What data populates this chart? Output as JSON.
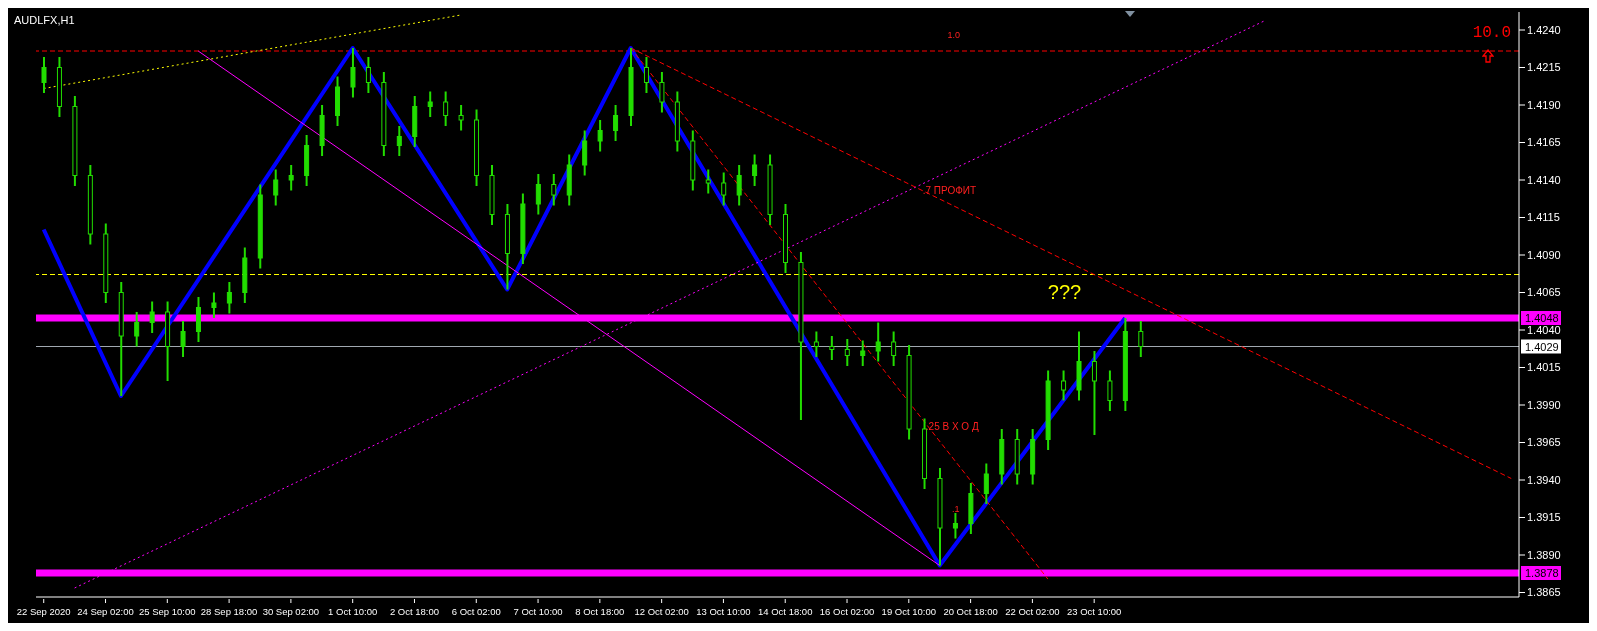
{
  "chart_data": {
    "type": "candlestick",
    "title": "AUDLFX,H1",
    "color": "#22dd00",
    "categories": [
      "22 Sep 2020",
      null,
      null,
      null,
      "24 Sep 02:00",
      null,
      null,
      null,
      "25 Sep 10:00",
      null,
      null,
      null,
      "28 Sep 18:00",
      null,
      null,
      null,
      "30 Sep 02:00",
      null,
      null,
      null,
      "1 Oct 10:00",
      null,
      null,
      null,
      "2 Oct 18:00",
      null,
      null,
      null,
      "6 Oct 02:00",
      null,
      null,
      null,
      "7 Oct 10:00",
      null,
      null,
      null,
      "8 Oct 18:00",
      null,
      null,
      null,
      "12 Oct 02:00",
      null,
      null,
      null,
      "13 Oct 10:00",
      null,
      null,
      null,
      "14 Oct 18:00",
      null,
      null,
      null,
      "16 Oct 02:00",
      null,
      null,
      null,
      "19 Oct 10:00",
      null,
      null,
      null,
      "20 Oct 18:00",
      null,
      null,
      null,
      "22 Oct 02:00",
      null,
      null,
      null,
      "23 Oct 10:00",
      null,
      null,
      null,
      null,
      null,
      null,
      null,
      null,
      null,
      null,
      null,
      null,
      null,
      null,
      null,
      null,
      null,
      null,
      null,
      null,
      null,
      null,
      null,
      null,
      null,
      null,
      null
    ],
    "ohlc": [
      [
        1.4205,
        1.4222,
        1.4198,
        1.4215
      ],
      [
        1.4215,
        1.4222,
        1.4182,
        1.4189
      ],
      [
        1.4189,
        1.4196,
        1.4136,
        1.4143
      ],
      [
        1.4143,
        1.415,
        1.4097,
        1.4104
      ],
      [
        1.4104,
        1.4111,
        1.4058,
        1.4065
      ],
      [
        1.4065,
        1.4072,
        1.3996,
        1.4036
      ],
      [
        1.4036,
        1.4052,
        1.4029,
        1.4045
      ],
      [
        1.4045,
        1.4059,
        1.4038,
        1.4052
      ],
      [
        1.4052,
        1.4059,
        1.4006,
        1.4029
      ],
      [
        1.4029,
        1.4046,
        1.4022,
        1.4039
      ],
      [
        1.4039,
        1.4062,
        1.4032,
        1.4055
      ],
      [
        1.4055,
        1.4065,
        1.4048,
        1.4058
      ],
      [
        1.4058,
        1.4072,
        1.4051,
        1.4065
      ],
      [
        1.4065,
        1.4095,
        1.4058,
        1.4088
      ],
      [
        1.4088,
        1.4137,
        1.4081,
        1.413
      ],
      [
        1.413,
        1.4147,
        1.4123,
        1.414
      ],
      [
        1.414,
        1.415,
        1.4133,
        1.4143
      ],
      [
        1.4143,
        1.417,
        1.4136,
        1.4163
      ],
      [
        1.4163,
        1.419,
        1.4156,
        1.4183
      ],
      [
        1.4183,
        1.4209,
        1.4176,
        1.4202
      ],
      [
        1.4202,
        1.4228,
        1.4195,
        1.4215
      ],
      [
        1.4215,
        1.4222,
        1.4198,
        1.4205
      ],
      [
        1.4205,
        1.4212,
        1.4156,
        1.4163
      ],
      [
        1.4163,
        1.4176,
        1.4156,
        1.4169
      ],
      [
        1.4169,
        1.4196,
        1.4162,
        1.4189
      ],
      [
        1.4189,
        1.4199,
        1.4182,
        1.4192
      ],
      [
        1.4192,
        1.4199,
        1.4176,
        1.4183
      ],
      [
        1.4183,
        1.419,
        1.4173,
        1.418
      ],
      [
        1.418,
        1.4187,
        1.4136,
        1.4143
      ],
      [
        1.4143,
        1.415,
        1.411,
        1.4117
      ],
      [
        1.4117,
        1.4124,
        1.4067,
        1.4091
      ],
      [
        1.4091,
        1.4131,
        1.4084,
        1.4124
      ],
      [
        1.4124,
        1.4144,
        1.4117,
        1.4137
      ],
      [
        1.4137,
        1.4144,
        1.4123,
        1.413
      ],
      [
        1.413,
        1.4157,
        1.4123,
        1.415
      ],
      [
        1.415,
        1.4173,
        1.4143,
        1.4166
      ],
      [
        1.4166,
        1.418,
        1.4159,
        1.4173
      ],
      [
        1.4173,
        1.419,
        1.4166,
        1.4183
      ],
      [
        1.4183,
        1.4228,
        1.4176,
        1.4215
      ],
      [
        1.4215,
        1.4222,
        1.4198,
        1.4205
      ],
      [
        1.4205,
        1.4212,
        1.4185,
        1.4192
      ],
      [
        1.4192,
        1.4199,
        1.4159,
        1.4166
      ],
      [
        1.4166,
        1.4173,
        1.4133,
        1.414
      ],
      [
        1.414,
        1.4147,
        1.4131,
        1.4138
      ],
      [
        1.4138,
        1.4145,
        1.4123,
        1.413
      ],
      [
        1.413,
        1.415,
        1.4123,
        1.4143
      ],
      [
        1.4143,
        1.4157,
        1.4136,
        1.415
      ],
      [
        1.415,
        1.4157,
        1.411,
        1.4117
      ],
      [
        1.4117,
        1.4124,
        1.4078,
        1.4085
      ],
      [
        1.4085,
        1.4092,
        1.398,
        1.4032
      ],
      [
        1.4032,
        1.4039,
        1.4022,
        1.4029
      ],
      [
        1.4029,
        1.4036,
        1.402,
        1.4027
      ],
      [
        1.4027,
        1.4034,
        1.4016,
        1.4023
      ],
      [
        1.4023,
        1.4033,
        1.4016,
        1.4026
      ],
      [
        1.4026,
        1.4045,
        1.4019,
        1.4032
      ],
      [
        1.4032,
        1.4039,
        1.4016,
        1.4023
      ],
      [
        1.4023,
        1.403,
        1.3967,
        1.3974
      ],
      [
        1.3974,
        1.3981,
        1.3934,
        1.3941
      ],
      [
        1.3941,
        1.3948,
        1.3883,
        1.3908
      ],
      [
        1.3908,
        1.3918,
        1.3901,
        1.3911
      ],
      [
        1.3911,
        1.3938,
        1.3904,
        1.3931
      ],
      [
        1.3931,
        1.3951,
        1.3924,
        1.3944
      ],
      [
        1.3944,
        1.3974,
        1.3937,
        1.3967
      ],
      [
        1.3967,
        1.3974,
        1.3937,
        1.3944
      ],
      [
        1.3944,
        1.3974,
        1.3937,
        1.3967
      ],
      [
        1.3967,
        1.4013,
        1.396,
        1.4006
      ],
      [
        1.4006,
        1.4013,
        1.3993,
        1.4
      ],
      [
        1.4,
        1.4039,
        1.3993,
        1.4019
      ],
      [
        1.4019,
        1.4026,
        1.397,
        1.4006
      ],
      [
        1.4006,
        1.4013,
        1.3986,
        1.3993
      ],
      [
        1.3993,
        1.4048,
        1.3986,
        1.4039
      ],
      [
        1.4039,
        1.4046,
        1.4022,
        1.4029
      ],
      null,
      null,
      null,
      null,
      null,
      null,
      null,
      null,
      null,
      null,
      null,
      null,
      null,
      null,
      null,
      null,
      null,
      null,
      null,
      null,
      null,
      null,
      null,
      null
    ],
    "series": [
      {
        "type": "line",
        "color": "#0000ff",
        "line_style": "solid",
        "values": [
          1.4107,
          null,
          null,
          null,
          null,
          1.3996,
          null,
          null,
          null,
          null,
          null,
          null,
          null,
          null,
          null,
          null,
          null,
          null,
          null,
          null,
          1.4228,
          null,
          null,
          null,
          null,
          null,
          null,
          null,
          null,
          null,
          1.4067,
          null,
          null,
          null,
          null,
          null,
          null,
          null,
          1.4228,
          null,
          null,
          null,
          null,
          null,
          null,
          null,
          null,
          null,
          null,
          null,
          null,
          null,
          null,
          null,
          null,
          null,
          null,
          null,
          1.3883,
          null,
          null,
          null,
          null,
          null,
          null,
          null,
          null,
          null,
          null,
          null,
          1.4048,
          null,
          null,
          null,
          null,
          null,
          null,
          null,
          null,
          null,
          null,
          null,
          null,
          null,
          null,
          null,
          null,
          null,
          null,
          null,
          null,
          null,
          null,
          null,
          null,
          null
        ]
      },
      {
        "type": "line",
        "color": "#ff00ff",
        "line_style": "solid",
        "values": [
          null,
          null,
          null,
          null,
          null,
          null,
          null,
          null,
          null,
          null,
          1.4226,
          null,
          null,
          null,
          null,
          null,
          null,
          null,
          null,
          null,
          null,
          null,
          null,
          null,
          null,
          null,
          null,
          null,
          null,
          null,
          null,
          null,
          null,
          null,
          null,
          null,
          null,
          null,
          null,
          null,
          null,
          null,
          null,
          null,
          null,
          null,
          null,
          null,
          null,
          null,
          null,
          null,
          null,
          null,
          null,
          null,
          null,
          null,
          1.3883,
          null,
          null,
          null,
          null,
          null,
          null,
          null,
          null,
          null,
          null,
          null,
          null,
          null,
          null,
          null,
          null,
          null,
          null,
          null,
          null,
          null,
          null,
          null,
          null,
          null,
          null,
          null,
          null,
          null,
          null,
          null,
          null,
          null,
          null,
          null,
          null,
          null
        ]
      },
      {
        "type": "line",
        "color": "#ff00ff",
        "line_style": "dotted",
        "values": [
          null,
          null,
          1.3868,
          null,
          null,
          null,
          null,
          null,
          null,
          null,
          null,
          null,
          null,
          null,
          null,
          null,
          null,
          null,
          null,
          null,
          null,
          null,
          null,
          null,
          null,
          null,
          null,
          null,
          null,
          null,
          null,
          null,
          null,
          null,
          null,
          null,
          null,
          null,
          null,
          null,
          null,
          null,
          null,
          null,
          null,
          null,
          null,
          null,
          null,
          null,
          null,
          null,
          null,
          null,
          null,
          null,
          null,
          null,
          null,
          null,
          null,
          null,
          null,
          null,
          null,
          null,
          null,
          null,
          null,
          null,
          null,
          null,
          null,
          null,
          null,
          null,
          null,
          null,
          null,
          1.4246,
          null,
          null,
          null,
          null,
          null,
          null,
          null,
          null,
          null,
          null,
          null,
          null,
          null,
          null,
          null,
          null
        ]
      },
      {
        "type": "line",
        "color": "#ffff00",
        "line_style": "dotted",
        "values": [
          1.4201,
          null,
          null,
          null,
          null,
          null,
          null,
          null,
          null,
          null,
          null,
          null,
          null,
          null,
          null,
          null,
          null,
          null,
          null,
          null,
          null,
          null,
          null,
          null,
          null,
          null,
          null,
          1.425,
          null,
          null,
          null,
          null,
          null,
          null,
          null,
          null,
          null,
          null,
          null,
          null,
          null,
          null,
          null,
          null,
          null,
          null,
          null,
          null,
          null,
          null,
          null,
          null,
          null,
          null,
          null,
          null,
          null,
          null,
          null,
          null,
          null,
          null,
          null,
          null,
          null,
          null,
          null,
          null,
          null,
          null,
          null,
          null,
          null,
          null,
          null,
          null,
          null,
          null,
          null,
          null,
          null,
          null,
          null,
          null,
          null,
          null,
          null,
          null,
          null,
          null,
          null,
          null,
          null,
          null,
          null,
          null
        ]
      },
      {
        "type": "line",
        "color": "#ff0000",
        "line_style": "dashed",
        "values": [
          null,
          null,
          null,
          null,
          null,
          null,
          null,
          null,
          null,
          null,
          null,
          null,
          null,
          null,
          null,
          null,
          null,
          null,
          null,
          null,
          null,
          null,
          null,
          null,
          null,
          null,
          null,
          null,
          null,
          null,
          null,
          null,
          null,
          null,
          null,
          null,
          null,
          null,
          1.4228,
          null,
          null,
          null,
          null,
          null,
          null,
          null,
          null,
          null,
          null,
          null,
          null,
          null,
          null,
          null,
          null,
          null,
          null,
          null,
          null,
          null,
          null,
          null,
          null,
          null,
          null,
          null,
          null,
          null,
          null,
          null,
          null,
          null,
          null,
          null,
          null,
          null,
          null,
          null,
          null,
          null,
          null,
          null,
          null,
          null,
          null,
          null,
          null,
          null,
          null,
          null,
          null,
          null,
          null,
          null,
          null,
          1.3941
        ]
      },
      {
        "type": "line",
        "color": "#ff0000",
        "line_style": "dashed",
        "values": [
          null,
          null,
          null,
          null,
          null,
          null,
          null,
          null,
          null,
          null,
          null,
          null,
          null,
          null,
          null,
          null,
          null,
          null,
          null,
          null,
          null,
          null,
          null,
          null,
          null,
          null,
          null,
          null,
          null,
          null,
          null,
          null,
          null,
          null,
          null,
          null,
          null,
          null,
          1.4228,
          null,
          null,
          null,
          null,
          null,
          null,
          null,
          null,
          null,
          null,
          null,
          null,
          null,
          null,
          null,
          null,
          null,
          null,
          null,
          null,
          null,
          null,
          null,
          null,
          null,
          null,
          1.3874,
          null,
          null,
          null,
          null,
          null,
          null,
          null,
          null,
          null,
          null,
          null,
          null,
          null,
          null,
          null,
          null,
          null,
          null,
          null,
          null,
          null,
          null,
          null,
          null,
          null,
          null,
          null,
          null,
          null,
          null
        ]
      }
    ],
    "ylim": [
      1.3862,
      1.4252
    ],
    "yticks": [
      1.3865,
      {
        "value": 1.389,
        "label": "1.3890"
      },
      1.3915,
      {
        "value": 1.394,
        "label": "1.3940"
      },
      1.3965,
      {
        "value": 1.399,
        "label": "1.3990"
      },
      1.4015,
      {
        "value": 1.404,
        "label": "1.4040"
      },
      1.4065,
      {
        "value": 1.409,
        "label": "1.4090"
      },
      1.4115,
      {
        "value": 1.414,
        "label": "1.4140"
      },
      1.4165,
      {
        "value": 1.419,
        "label": "1.4190"
      },
      1.4215,
      {
        "value": 1.424,
        "label": "1.4240"
      }
    ],
    "ref_lines": [
      {
        "axis": "y",
        "value": 1.4048,
        "label": "1.4048",
        "color": "#ff00ff",
        "line_style": "solid"
      },
      {
        "axis": "y",
        "value": 1.3878,
        "label": "1.3878",
        "color": "#ff00ff",
        "line_style": "solid"
      },
      {
        "axis": "y",
        "value": 1.4029,
        "label": "1.4029",
        "color": "#a0a8b0",
        "line_style": "solid"
      },
      {
        "axis": "y",
        "value": 1.4077,
        "color": "#ffff00",
        "line_style": "dashed"
      },
      {
        "axis": "y",
        "value": 1.4226,
        "color": "#ff0000",
        "line_style": "dashed"
      }
    ],
    "annotations": [
      ".7 ПРОФИТ",
      ".25 В Х О Д",
      ".1",
      "???",
      "10.0",
      "1.0"
    ]
  }
}
